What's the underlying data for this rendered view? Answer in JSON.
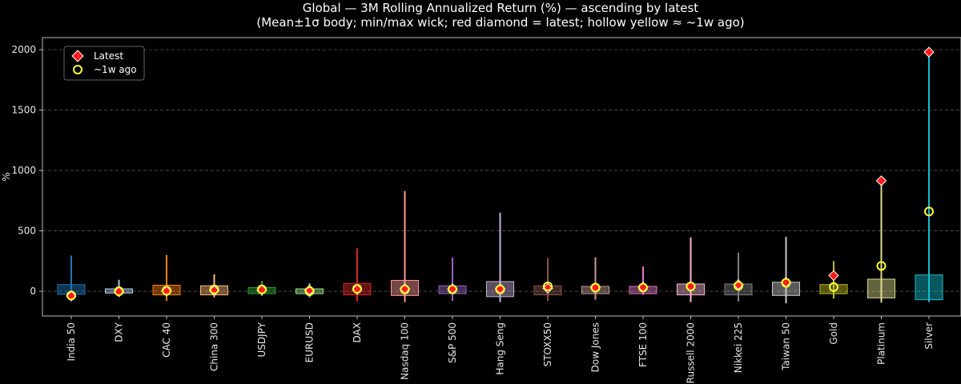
{
  "chart_data": {
    "type": "candlestick-range",
    "title_line1": "Global — 3M Rolling Annualized Return (%) — ascending by latest",
    "title_line2": "(Mean±1σ body; min/max wick; red diamond = latest; hollow yellow ≈ ~1w ago)",
    "ylabel": "%",
    "xlabel": "",
    "ylim": [
      -205,
      2100
    ],
    "yticks": [
      0,
      500,
      1000,
      1500,
      2000
    ],
    "grid": true,
    "legend": {
      "placement": "top-left",
      "entries": [
        {
          "key": "latest",
          "label": "Latest"
        },
        {
          "key": "week_ago",
          "label": "~1w ago"
        }
      ]
    },
    "colors": {
      "latest_marker": "#ff1a1a",
      "week_ago_marker": "#ffff33",
      "grid": "#555555",
      "axes": "#bbbbbb"
    },
    "categories": [
      "India 50",
      "DXY",
      "CAC 40",
      "China 300",
      "USDJPY",
      "EURUSD",
      "DAX",
      "Nasdaq 100",
      "S&P 500",
      "Hang Seng",
      "STOXX50",
      "Dow Jones",
      "FTSE 100",
      "Russell 2000",
      "Nikkei 225",
      "Taiwan 50",
      "Gold",
      "Platinum",
      "Silver"
    ],
    "series": [
      {
        "name": "India 50",
        "color": "#1f77b4",
        "min": -70,
        "max": 295,
        "mean_minus_sd": -25,
        "mean_plus_sd": 55,
        "latest": -40,
        "week_ago": -35
      },
      {
        "name": "DXY",
        "color": "#aec7e8",
        "min": -25,
        "max": 95,
        "mean_minus_sd": -15,
        "mean_plus_sd": 20,
        "latest": -5,
        "week_ago": 0
      },
      {
        "name": "CAC 40",
        "color": "#ff7f0e",
        "min": -80,
        "max": 300,
        "mean_minus_sd": -30,
        "mean_plus_sd": 50,
        "latest": 0,
        "week_ago": 5
      },
      {
        "name": "China 300",
        "color": "#ffbb78",
        "min": -50,
        "max": 140,
        "mean_minus_sd": -30,
        "mean_plus_sd": 45,
        "latest": 5,
        "week_ago": 15
      },
      {
        "name": "USDJPY",
        "color": "#2ca02c",
        "min": -40,
        "max": 85,
        "mean_minus_sd": -20,
        "mean_plus_sd": 30,
        "latest": 10,
        "week_ago": 15
      },
      {
        "name": "EURUSD",
        "color": "#98df8a",
        "min": -50,
        "max": 65,
        "mean_minus_sd": -20,
        "mean_plus_sd": 20,
        "latest": 10,
        "week_ago": 0
      },
      {
        "name": "DAX",
        "color": "#d62728",
        "min": -85,
        "max": 355,
        "mean_minus_sd": -30,
        "mean_plus_sd": 65,
        "latest": 15,
        "week_ago": 20
      },
      {
        "name": "Nasdaq 100",
        "color": "#ff9896",
        "min": -90,
        "max": 830,
        "mean_minus_sd": -35,
        "mean_plus_sd": 90,
        "latest": 20,
        "week_ago": 15
      },
      {
        "name": "S&P 500",
        "color": "#9467bd",
        "min": -80,
        "max": 280,
        "mean_minus_sd": -20,
        "mean_plus_sd": 45,
        "latest": 20,
        "week_ago": 15
      },
      {
        "name": "Hang Seng",
        "color": "#c5b0d5",
        "min": -90,
        "max": 650,
        "mean_minus_sd": -45,
        "mean_plus_sd": 80,
        "latest": 20,
        "week_ago": 15
      },
      {
        "name": "STOXX50",
        "color": "#8c564b",
        "min": -80,
        "max": 275,
        "mean_minus_sd": -30,
        "mean_plus_sd": 45,
        "latest": 25,
        "week_ago": 40
      },
      {
        "name": "Dow Jones",
        "color": "#c49c94",
        "min": -70,
        "max": 280,
        "mean_minus_sd": -20,
        "mean_plus_sd": 40,
        "latest": 30,
        "week_ago": 30
      },
      {
        "name": "FTSE 100",
        "color": "#e377c2",
        "min": -30,
        "max": 205,
        "mean_minus_sd": -20,
        "mean_plus_sd": 40,
        "latest": 35,
        "week_ago": 30
      },
      {
        "name": "Russell 2000",
        "color": "#f7b6d2",
        "min": -90,
        "max": 445,
        "mean_minus_sd": -30,
        "mean_plus_sd": 60,
        "latest": 40,
        "week_ago": 40
      },
      {
        "name": "Nikkei 225",
        "color": "#7f7f7f",
        "min": -85,
        "max": 320,
        "mean_minus_sd": -30,
        "mean_plus_sd": 60,
        "latest": 55,
        "week_ago": 45
      },
      {
        "name": "Taiwan 50",
        "color": "#c7c7c7",
        "min": -100,
        "max": 450,
        "mean_minus_sd": -35,
        "mean_plus_sd": 75,
        "latest": 75,
        "week_ago": 70
      },
      {
        "name": "Gold",
        "color": "#bcbd22",
        "min": -60,
        "max": 250,
        "mean_minus_sd": -20,
        "mean_plus_sd": 55,
        "latest": 130,
        "week_ago": 35
      },
      {
        "name": "Platinum",
        "color": "#dbdb8d",
        "min": -95,
        "max": 910,
        "mean_minus_sd": -55,
        "mean_plus_sd": 100,
        "latest": 915,
        "week_ago": 210
      },
      {
        "name": "Silver",
        "color": "#17becf",
        "min": -90,
        "max": 1975,
        "mean_minus_sd": -70,
        "mean_plus_sd": 135,
        "latest": 1980,
        "week_ago": 660
      }
    ]
  }
}
